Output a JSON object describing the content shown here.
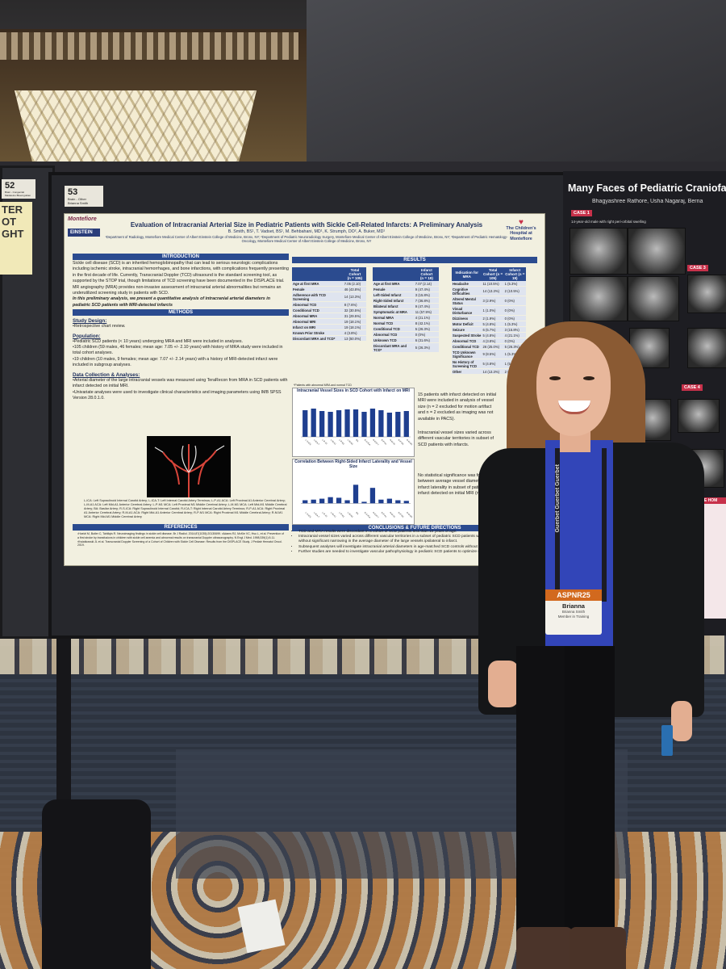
{
  "booth_numbers": {
    "left": "52",
    "main": "53"
  },
  "left_booth": {
    "label_line1": "Brain - Congenital",
    "label_line2": "Madeleine Bluemgulden",
    "poster_text": "TER\nOT\nGHT"
  },
  "main_booth": {
    "label_line1": "Brain - Other",
    "label_line2": "Brianna Smith"
  },
  "main_poster": {
    "title": "Evaluation of Intracranial Arterial Size in Pediatric Patients with Sickle Cell-Related Infarcts: A Preliminary Analysis",
    "authors": "B. Smith, BS¹, T. Vadset, BS¹, M. Behbahani, MD¹, K. Strumph, DO², A. Buker, MD¹",
    "affiliations": "¹Department of Radiology, Montefiore Medical Center of Albert Einstein College of Medicine, Bronx, NY; ²Department of Pediatric Neuroradiology Surgery, Montefiore Medical Center of Albert Einstein College of Medicine, Bronx, NY; ³Department of Pediatric Hematology-Oncology, Montefiore Medical Center of Albert Einstein College of Medicine, Bronx, NY",
    "logo_left_name": "Montefiore",
    "logo_left_box": "EINSTEIN",
    "logo_right": "The Children's Hospital at Montefiore",
    "sections": {
      "introduction": "INTRODUCTION",
      "methods": "METHODS",
      "results": "RESULTS",
      "references": "REFERENCES",
      "conclusions": "CONCLUSIONS & FUTURE DIRECTIONS"
    },
    "intro_text": "Sickle cell disease (SCD) is an inherited hemoglobinopathy that can lead to serious neurologic complications including ischemic stroke, intracranial hemorrhages, and bone infarctions, with complications frequently presenting in the first decade of life. Currently, Transcranial Doppler (TCD) ultrasound is the standard screening tool, as supported by the STOP trial, though limitations of TCD screening have been documented in the DISPLACE trial. MR angiography (MRA) provides non-invasive assessment of intracranial arterial abnormalities but remains an underutilized screening study in patients with SCD.",
    "intro_emphasis": "In this preliminary analysis, we present a quantitative analysis of intracranial arterial diameters in pediatric SCD patients with MRI-detected infarcts",
    "study_design_label": "Study Design:",
    "study_design_text": "•Retrospective chart review.",
    "population_label": "Population:",
    "population_text_1": "•Pediatric SCD patients (< 10 years) undergoing MRA and MRI were included in analyses.",
    "population_text_2": "•105 children (59 males, 46 females; mean age: 7.05 +/- 2.10 years) with history of MRA study were included in total cohort analyses.",
    "population_text_3": "•19 children (10 males, 9 females; mean age: 7.07 +/- 2.14 years) with a history of MRI-detected infarct were included in subgroup analyses.",
    "data_label": "Data Collection & Analyses:",
    "data_text_1": "•Arterial diameter of the large intracranial vessels was measured using TeraRecon from MRA in SCD patients with infarct detected on initial MRI.",
    "data_text_2": "•Univariate analyses were used to investigate clinical characteristics and imaging parameters using IMB SPSS Version 28.0.1.0.",
    "total_cohort_table": {
      "header_1": "Total Cohort",
      "header_2": "(n = 105)",
      "rows": [
        [
          "Age at first MRA",
          "7.05 (2.10)"
        ],
        [
          "Female",
          "46 (43.8%)"
        ],
        [
          "Adherence with TCD Screening",
          "14 (13.3%)"
        ],
        [
          "Abnormal TCD",
          "8 (7.6%)"
        ],
        [
          "Conditional TCD",
          "32 (30.5%)"
        ],
        [
          "Abnormal MRA",
          "31 (29.5%)"
        ],
        [
          "Abnormal MRI",
          "19 (18.1%)"
        ],
        [
          "Infarct on MRI",
          "19 (18.1%)"
        ],
        [
          "Known Prior Stroke",
          "4 (3.8%)"
        ],
        [
          "Discordant MRA and TCD*",
          "13 (50.0%)"
        ]
      ],
      "footnote": "*Patients with abnormal MRA and normal TCD"
    },
    "infarct_table": {
      "header_1": "Infarct Cohort",
      "header_2": "(n = 19)",
      "rows": [
        [
          "Age at first MRA",
          "7.07 (2.14)"
        ],
        [
          "Female",
          "9 (47.4%)"
        ],
        [
          "Left-Sided Infarct",
          "3 (15.8%)"
        ],
        [
          "Right-Sided Infarct",
          "7 (36.8%)"
        ],
        [
          "Bilateral Infarct",
          "9 (47.4%)"
        ],
        [
          "Symptomatic at MRA",
          "11 (57.9%)"
        ],
        [
          "Normal MRA",
          "4 (21.1%)"
        ],
        [
          "Normal TCD",
          "8 (42.1%)"
        ],
        [
          "Conditional TCD",
          "5 (26.3%)"
        ],
        [
          "Abnormal TCD",
          "0 (0%)"
        ],
        [
          "Unknown TCD",
          "6 (31.6%)"
        ],
        [
          "Discordant MRA and TCD*",
          "5 (26.3%)"
        ]
      ]
    },
    "indication_table": {
      "header_1": "Indication for MRA",
      "header_2": "Total Cohort (n = 105)",
      "header_3": "Infarct Cohort (n = 19)",
      "rows": [
        [
          "Headache",
          "11 (10.5%)",
          "1 (5.3%)"
        ],
        [
          "Cognitive Difficulties",
          "14 (13.3%)",
          "2 (10.5%)"
        ],
        [
          "Altered Mental Status",
          "3 (2.9%)",
          "0 (0%)"
        ],
        [
          "Visual Disturbance",
          "1 (1.0%)",
          "0 (0%)"
        ],
        [
          "Dizziness",
          "2 (1.9%)",
          "0 (0%)"
        ],
        [
          "Motor Deficit",
          "5 (4.8%)",
          "1 (5.3%)"
        ],
        [
          "Seizure",
          "6 (5.7%)",
          "3 (15.8%)"
        ],
        [
          "Suspected Stroke",
          "5 (4.8%)",
          "4 (21.1%)"
        ],
        [
          "Abnormal TCD",
          "4 (3.8%)",
          "0 (0%)"
        ],
        [
          "Conditional TCD",
          "26 (25.0%)",
          "5 (26.3%)"
        ],
        [
          "TCD Unknown Significance",
          "9 (8.5%)",
          "1 (5.3%)"
        ],
        [
          "No History of Screening TCD",
          "5 (4.8%)",
          "1 (5.3%)"
        ],
        [
          "Other",
          "14 (13.3%)",
          "2 (10.5%)"
        ]
      ]
    },
    "results_text_1": "15 patients with infarct detected on initial MRI were included in analysis of vessel size (n = 2 excluded for motion artifact and n = 2 excluded as imaging was not available in PACS).",
    "results_text_2": "Intracranial vessel sizes varied across different vascular territories in subset of SCD patients with infarcts.",
    "results_text_3": "No statistical significance was found between average vessel diameter and infarct laterality in subset of patients with infarct detected on initial MRI (n = 15).",
    "vessel_legend": "L-ICA: Left Supraclinoid Internal Carotid Artery; L-ICA-T: Left Internal Carotid Artery Terminus; L-P-A1 ACA: Left Proximal A1 Anterior Cerebral Artery; L-M-A1 ACA: Left Mid-A1 Anterior Cerebral Artery; L-P-M1 MCA: Left Proximal M1 Middle Cerebral Artery; L-M-M1 MCA: Left Mid-M1 Middle Cerebral Artery; BA: Basilar Artery; R-S-ICA: Right Supraclinoid Internal Carotid; R-ICA-T: Right Internal Carotid Artery Terminus; R-P-A1 ACA: Right Proximal A1 Anterior Cerebral Artery; R-M-A1 ACA: Right Mid-A1 Anterior Cerebral Artery; R-P-M1 MCA: Right Proximal M1 Middle Cerebral Artery; R-M-M1 MCA: Right Mid-M1 Middle Cerebral Artery",
    "references_text": "¹Hoelzl M, Butler C, Tahiliqis R. Neuroimaging findings in sickle cell disease. Br J Radiol. 2014;87(1035):20130699.  ²Adams RJ, McKie VC, Hsu L, et al. Prevention of a first stroke by transfusions in children with sickle cell anemia and abnormal results on transcranial Doppler ultrasonography. N Engl J Med. 1998;339(1):5-11.  ³Kwiatkowski JL et al. Transcranial Doppler Screening of a Cohort of Children with Sickle Cell Disease: Results from the DISPLACE Study. J Pediatr Hematol Oncol. 2019.",
    "conclusions": [
      "TCD and MRA results were discordant in a cohort of SCD patients less than 10 years of age.",
      "Intracranial vessel sizes varied across different vascular territories in a subset of pediatric SCD patients with infarct detected on initial MRI, without significant narrowing in the average diameter of the large vessels ipsilateral to infarct.",
      "Subsequent analyses will investigate intracranial arterial diameters in age-matched SCD controls without infarct.",
      "Further studies are needed to investigate vascular pathophysiology in pediatric SCD patients to optimize screening."
    ],
    "chart1_title": "Intracranial Vessel Sizes in SCD Cohort with Infarct on MRI",
    "chart2_title": "Correlation Between Right-Sided Infarct Laterality and Vessel Size"
  },
  "chart_data": [
    {
      "type": "bar",
      "title": "Intracranial Vessel Sizes in SCD Cohort with Infarct on MRI",
      "categories": [
        "L-S-ICA",
        "L-ICA-T",
        "L-P-A1",
        "L-M-A1",
        "L-P-M1",
        "L-M-M1",
        "BA",
        "R-S-ICA",
        "R-ICA-T",
        "R-P-A1",
        "R-M-A1",
        "R-P-M1",
        "R-M-M1"
      ],
      "values": [
        3.3,
        3.5,
        3.2,
        3.1,
        3.3,
        3.4,
        3.4,
        3.1,
        3.5,
        3.3,
        3.0,
        3.1,
        3.2
      ],
      "ylim": [
        0,
        5
      ],
      "color": "#1f3f8f"
    },
    {
      "type": "bar",
      "title": "Correlation Between Right-Sided Infarct Laterality and Vessel Size",
      "categories": [
        "L-S-ICA",
        "L-ICA-T",
        "L-P-A1",
        "L-M-A1",
        "L-P-M1",
        "L-M-M1",
        "BA",
        "R-S-ICA",
        "R-ICA-T",
        "R-P-A1",
        "R-M-A1",
        "R-P-M1",
        "R-M-M1"
      ],
      "values": [
        0.1,
        0.12,
        0.15,
        0.2,
        0.18,
        0.1,
        0.6,
        0.05,
        0.5,
        0.12,
        0.15,
        0.1,
        0.08
      ],
      "ylim": [
        -0.2,
        1.0
      ],
      "color": "#1f3f8f"
    }
  ],
  "right_poster": {
    "title": "Many Faces of Pediatric Craniofacial",
    "authors": "Bhagyashree Rathore, Usha Nagaraj, Berna",
    "case_labels": [
      "CASE 1",
      "CASE 3",
      "CASE 4"
    ],
    "case1_text": "14-year-old male with right peri-orbital swelling",
    "take_home": "TAKE HOM"
  },
  "badge": {
    "header": "ASPNR25",
    "name": "Brianna",
    "sub": "Brianna Smith",
    "role": "Member in Training"
  },
  "lanyard_text": "Guerbet  Guerbet  Guerbet",
  "colors": {
    "poster_header_blue": "#2b4b8f",
    "badge_orange": "#d2691e",
    "shirt_blue": "#3245b8"
  }
}
